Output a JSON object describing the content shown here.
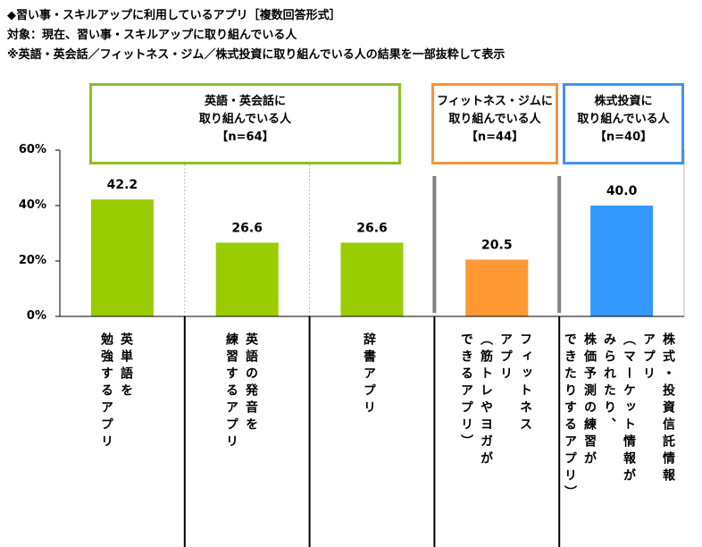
{
  "header": {
    "line1": "◆習い事・スキルアップに利用しているアプリ［複数回答形式］",
    "line2": "対象：現在、習い事・スキルアップに取り組んでいる人",
    "line3": "※英語・英会話／フィットネス・ジム／株式投資に取り組んでいる人の結果を一部抜粋して表示"
  },
  "groups": [
    {
      "label": "英語・英会話に\n取り組んでいる人\n【n=64】",
      "color": "#8dc21f"
    },
    {
      "label": "フィットネス・ジムに\n取り組んでいる人\n【n=44】",
      "color": "#f7943c"
    },
    {
      "label": "株式投資に\n取り組んでいる人\n【n=40】",
      "color": "#3d94f6"
    }
  ],
  "chart_data": {
    "type": "bar",
    "categories": [
      "英単語を\n勉強するアプリ",
      "英語の発音を\n練習するアプリ",
      "辞書アプリ",
      "フィットネス\nアプリ\n（筋トレやヨガが\nできるアプリ）",
      "株式・投資信託情報\nアプリ\n（マーケット情報が\nみられたり、\n株価予測の練習が\nできたりするアプリ）"
    ],
    "values": [
      42.2,
      26.6,
      26.6,
      20.5,
      40.0
    ],
    "value_labels": [
      "42.2",
      "26.6",
      "26.6",
      "20.5",
      "40.0"
    ],
    "colors": [
      "#99cc00",
      "#99cc00",
      "#99cc00",
      "#ff9933",
      "#3399ff"
    ],
    "ylim": [
      0,
      60
    ],
    "yticks": [
      "0%",
      "20%",
      "40%",
      "60%"
    ],
    "grid": false
  }
}
